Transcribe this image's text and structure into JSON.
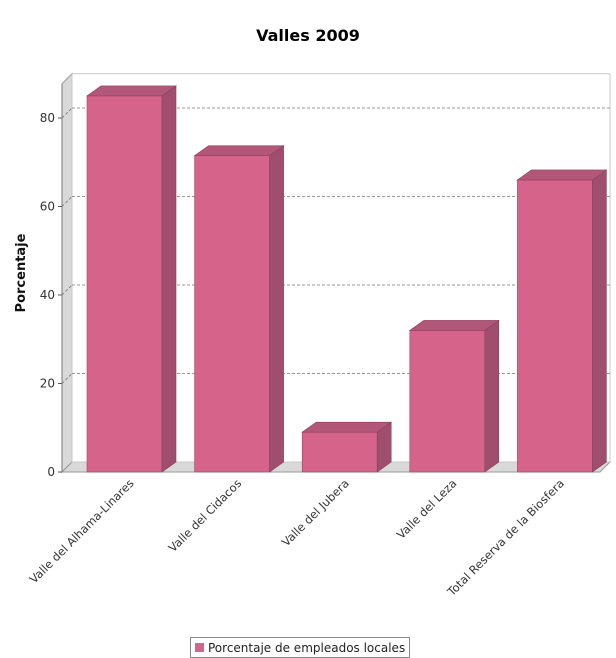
{
  "chart_data": {
    "type": "bar",
    "title": "Valles 2009",
    "ylabel": "Porcentaje",
    "xlabel": "",
    "categories": [
      "Valle del Alhama-Linares",
      "Valle del Cidacos",
      "Valle del Jubera",
      "Valle del Leza",
      "Total Reserva de la Biosfera"
    ],
    "series": [
      {
        "name": "Porcentaje de empleados locales",
        "values": [
          85,
          71.5,
          9,
          32,
          66
        ]
      }
    ],
    "ylim": [
      0,
      90
    ],
    "yticks": [
      0,
      20,
      40,
      60,
      80
    ],
    "grid": true,
    "legend_position": "bottom",
    "bar_color": "#d6648a",
    "bar_side_color": "#a04e6e",
    "bar_top_color": "#b25777",
    "style": "3d"
  }
}
